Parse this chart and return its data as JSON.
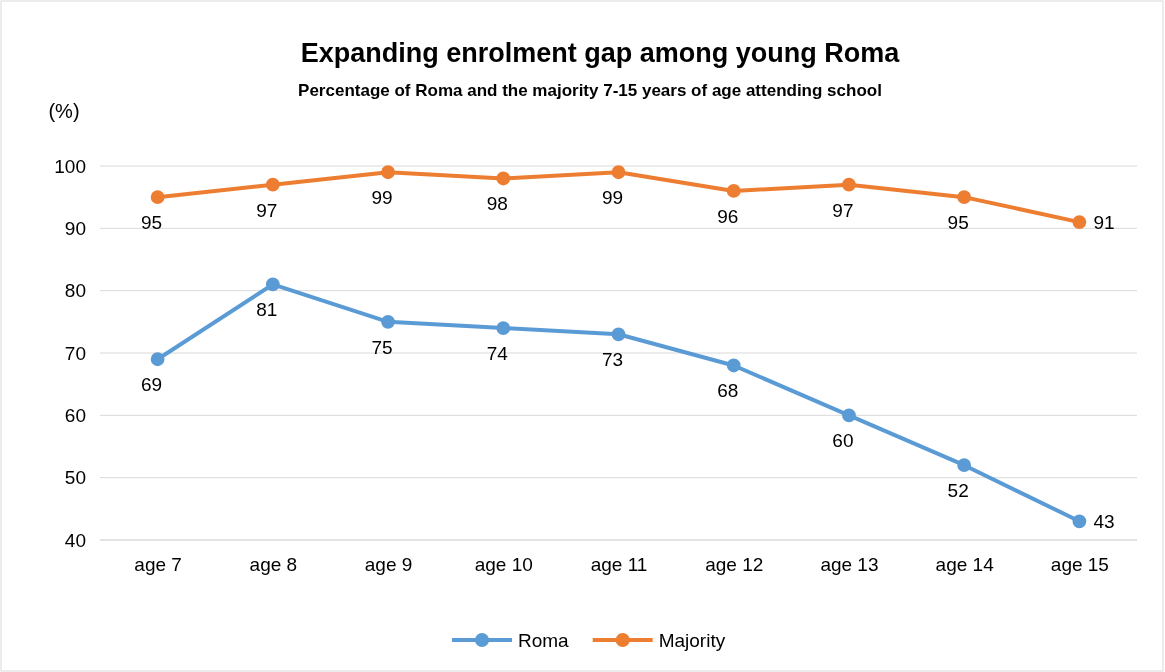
{
  "chart_data": {
    "type": "line",
    "title": "Expanding enrolment gap among young Roma",
    "subtitle": "Percentage of Roma and the majority 7-15 years of age attending school",
    "ylabel": "(%)",
    "categories": [
      "age 7",
      "age 8",
      "age 9",
      "age 10",
      "age 11",
      "age 12",
      "age 13",
      "age 14",
      "age 15"
    ],
    "series": [
      {
        "name": "Roma",
        "color": "#5b9bd5",
        "values": [
          69,
          81,
          75,
          74,
          73,
          68,
          60,
          52,
          43
        ]
      },
      {
        "name": "Majority",
        "color": "#ed7d31",
        "values": [
          95,
          97,
          99,
          98,
          99,
          96,
          97,
          95,
          91
        ]
      }
    ],
    "ylim": [
      40,
      100
    ],
    "yticks": [
      40,
      50,
      60,
      70,
      80,
      90,
      100
    ],
    "grid": "y",
    "legend": "bottom",
    "marker": "circle",
    "line_style": "solid",
    "data_labels": true
  }
}
